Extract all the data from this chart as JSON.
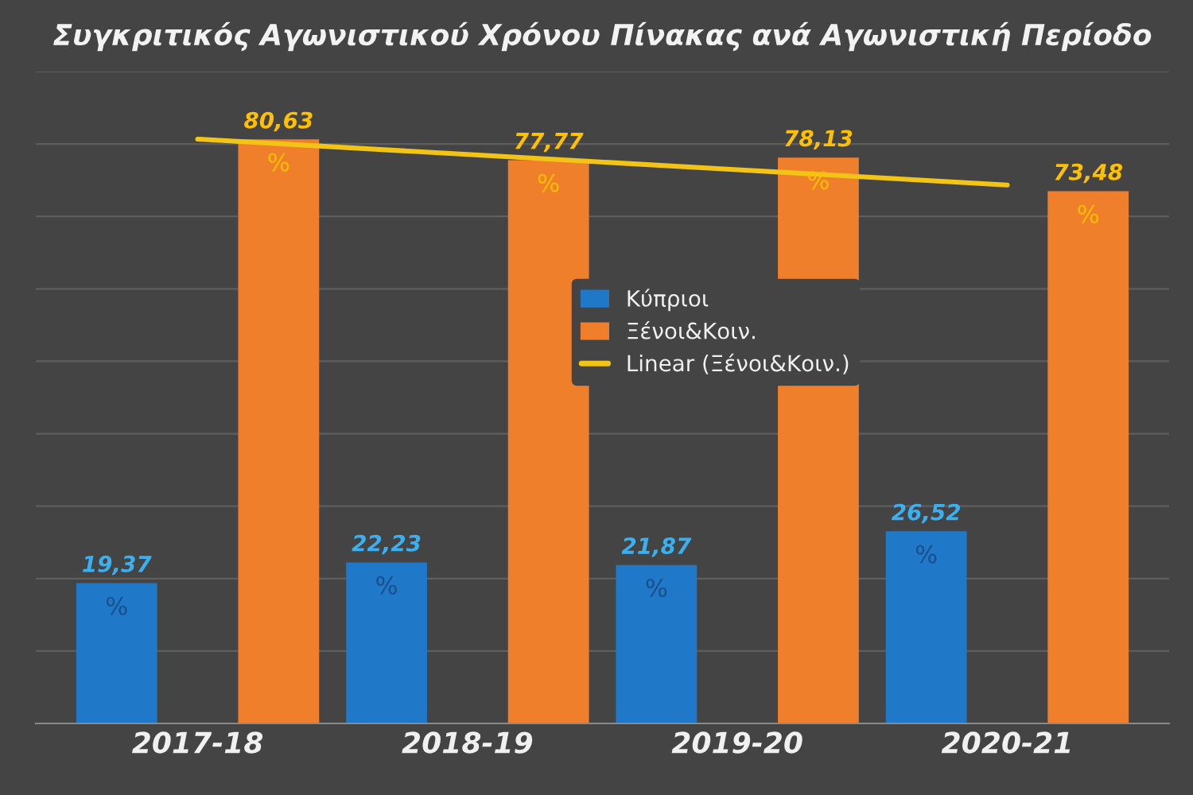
{
  "chart_data": {
    "type": "bar",
    "title": "Συγκριτικός Αγωνιστικού Χρόνου Πίνακας ανά Αγωνιστική Περίοδο",
    "categories": [
      "2017-18",
      "2018-19",
      "2019-20",
      "2020-21"
    ],
    "series": [
      {
        "name": "Κύπριοι",
        "color": "#1f78c8",
        "values": [
          19.37,
          22.23,
          21.87,
          26.52
        ],
        "value_labels": [
          "19,37",
          "22,23",
          "21,87",
          "26,52"
        ]
      },
      {
        "name": "Ξένοι&Κοιν.",
        "color": "#f07f2c",
        "values": [
          80.63,
          77.77,
          78.13,
          73.48
        ],
        "value_labels": [
          "80,63",
          "77,77",
          "78,13",
          "73,48"
        ]
      },
      {
        "name": "Linear (Ξένοι&Κοιν.)",
        "type": "line",
        "color": "#f2c418",
        "values": [
          80.67,
          78.56,
          76.45,
          74.34
        ],
        "marker": "none",
        "line_style": "solid"
      }
    ],
    "annotations": [
      "%",
      "%",
      "%",
      "%",
      "%",
      "%",
      "%",
      "%"
    ],
    "ylim": [
      0,
      90
    ],
    "yticks": [
      {
        "value": 0,
        "label": null
      },
      {
        "value": 10,
        "label": null
      },
      {
        "value": 20,
        "label": null
      },
      {
        "value": 30,
        "label": null
      },
      {
        "value": 40,
        "label": null
      },
      {
        "value": 50,
        "label": null
      },
      {
        "value": 60,
        "label": null
      },
      {
        "value": 70,
        "label": null
      },
      {
        "value": 80,
        "label": null
      },
      {
        "value": 90,
        "label": null
      }
    ],
    "grid": "y",
    "legend": "center",
    "tick_labels": "x"
  }
}
